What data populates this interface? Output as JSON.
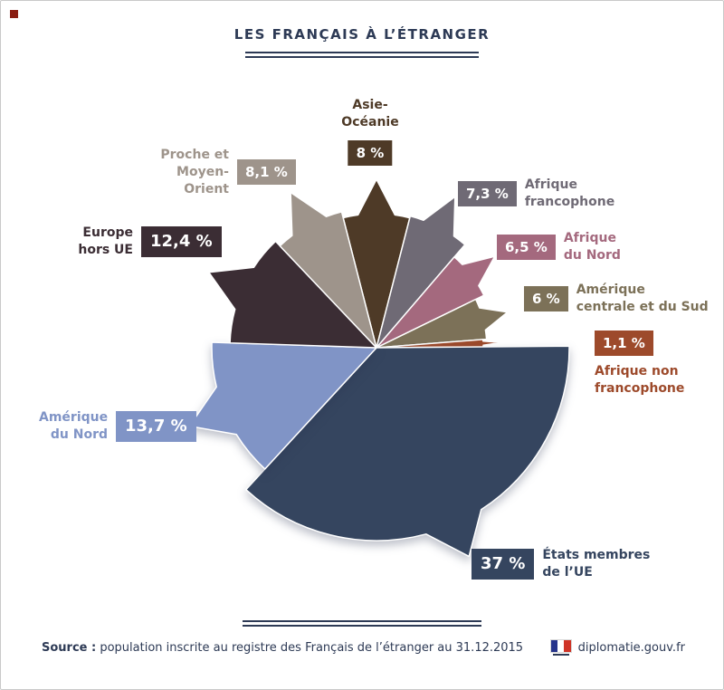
{
  "title": "LES FRANÇAIS À L’ÉTRANGER",
  "footer": {
    "source_label": "Source :",
    "source_text": " population inscrite au registre des Français de l’étranger au 31.12.2015",
    "site": "diplomatie.gouv.fr"
  },
  "chart_data": {
    "type": "pie",
    "title": "LES FRANÇAIS À L’ÉTRANGER",
    "unit": "%",
    "legend_position": "around",
    "source": "population inscrite au registre des Français de l’étranger au 31.12.2015",
    "slices": [
      {
        "id": "asie-oceanie",
        "label": "Asie-Océanie",
        "label_lines": [
          "Asie-",
          "Océanie"
        ],
        "value": 8,
        "display": "8 %",
        "color": "#4e3a27"
      },
      {
        "id": "afrique-francophone",
        "label": "Afrique francophone",
        "label_lines": [
          "Afrique",
          "francophone"
        ],
        "value": 7.3,
        "display": "7,3 %",
        "color": "#6f6a75"
      },
      {
        "id": "afrique-du-nord",
        "label": "Afrique du Nord",
        "label_lines": [
          "Afrique",
          "du Nord"
        ],
        "value": 6.5,
        "display": "6,5 %",
        "color": "#a4697e"
      },
      {
        "id": "amerique-centrale-sud",
        "label": "Amérique centrale et du Sud",
        "label_lines": [
          "Amérique",
          "centrale et du Sud"
        ],
        "value": 6,
        "display": "6 %",
        "color": "#7c7158"
      },
      {
        "id": "afrique-non-francophone",
        "label": "Afrique non francophone",
        "label_lines": [
          "Afrique non",
          "francophone"
        ],
        "value": 1.1,
        "display": "1,1 %",
        "color": "#9d4a2b"
      },
      {
        "id": "etats-membres-ue",
        "label": "États membres de l’UE",
        "label_lines": [
          "États membres",
          "de l’UE"
        ],
        "value": 37,
        "display": "37 %",
        "color": "#35455f"
      },
      {
        "id": "amerique-du-nord",
        "label": "Amérique du Nord",
        "label_lines": [
          "Amérique",
          "du Nord"
        ],
        "value": 13.7,
        "display": "13,7 %",
        "color": "#8094c6"
      },
      {
        "id": "europe-hors-ue",
        "label": "Europe hors UE",
        "label_lines": [
          "Europe",
          "hors UE"
        ],
        "value": 12.4,
        "display": "12,4 %",
        "color": "#3b2d34"
      },
      {
        "id": "proche-moyen-orient",
        "label": "Proche et Moyen-Orient",
        "label_lines": [
          "Proche et",
          "Moyen-Orient"
        ],
        "value": 8.1,
        "display": "8,1 %",
        "color": "#9e948b"
      }
    ]
  }
}
